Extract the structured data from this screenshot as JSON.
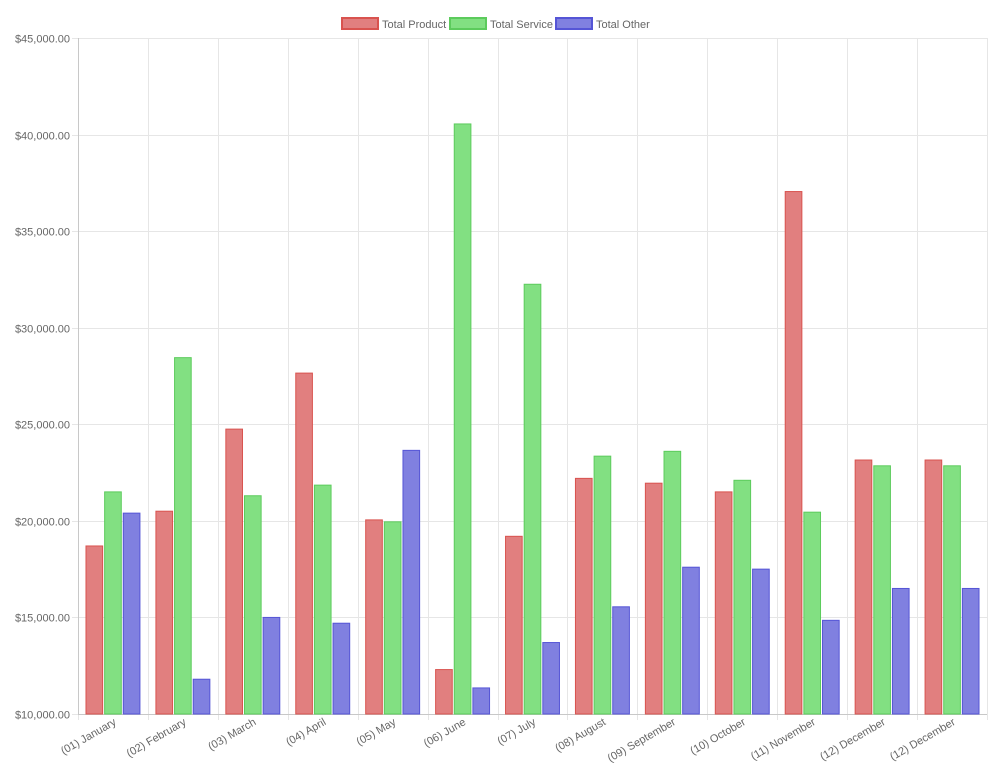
{
  "chart_data": {
    "type": "bar",
    "title": "",
    "xlabel": "",
    "ylabel": "",
    "categories": [
      "(01) January",
      "(02) February",
      "(03) March",
      "(04) April",
      "(05) May",
      "(06) June",
      "(07) July",
      "(08) August",
      "(09) September",
      "(10) October",
      "(11) November",
      "(12) December",
      "(12) December"
    ],
    "series": [
      {
        "name": "Total Product",
        "fill": "#E17F7F",
        "stroke": "#D9534F",
        "values": [
          18700,
          20500,
          24750,
          27650,
          20050,
          12300,
          19200,
          22200,
          21950,
          21500,
          37050,
          23150,
          23150
        ]
      },
      {
        "name": "Total Service",
        "fill": "#82E082",
        "stroke": "#5CCB5C",
        "values": [
          21500,
          28450,
          21300,
          21850,
          19950,
          40550,
          32250,
          23350,
          23600,
          22100,
          20450,
          22850,
          22850
        ]
      },
      {
        "name": "Total Other",
        "fill": "#8080E0",
        "stroke": "#5555D6",
        "values": [
          20400,
          11800,
          15000,
          14700,
          23650,
          11350,
          13700,
          15550,
          17600,
          17500,
          14850,
          16500,
          16500
        ]
      }
    ],
    "ylim": [
      10000,
      45000
    ],
    "yticks": [
      "$10,000.00",
      "$15,000.00",
      "$20,000.00",
      "$25,000.00",
      "$30,000.00",
      "$35,000.00",
      "$40,000.00",
      "$45,000.00"
    ],
    "ytick_values": [
      10000,
      15000,
      20000,
      25000,
      30000,
      35000,
      40000,
      45000
    ],
    "grid": true,
    "legend_position": "top-center",
    "grid_color": "#e6e6e6",
    "axis_color": "#c8c8c8"
  }
}
